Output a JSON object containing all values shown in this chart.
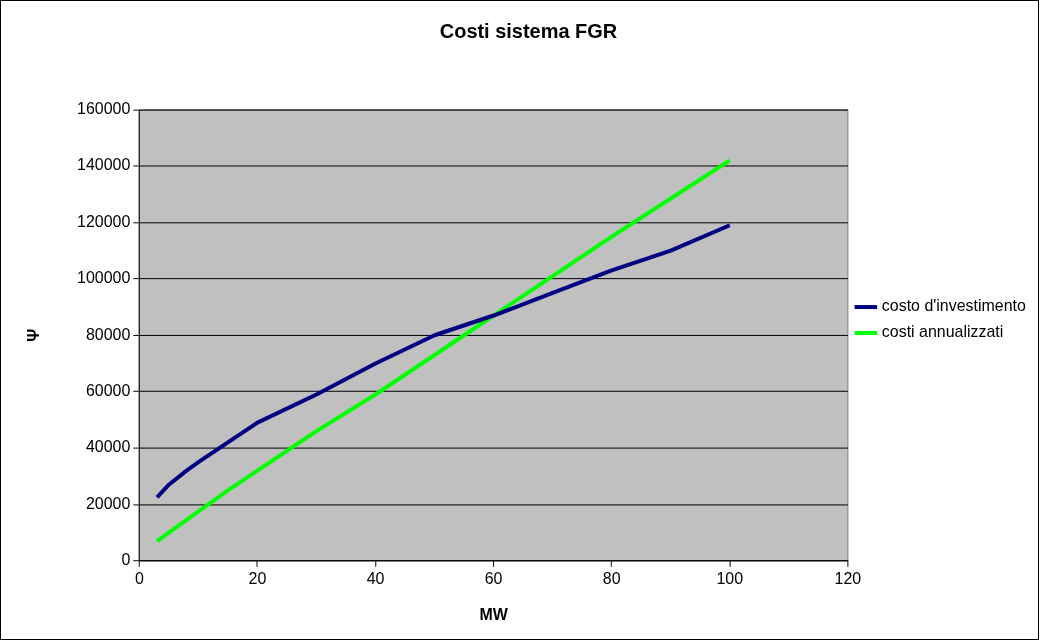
{
  "chart_data": {
    "type": "line",
    "title": "Costi sistema FGR",
    "xlabel": "MW",
    "ylabel": "Ψ",
    "x": [
      3,
      5,
      8,
      10,
      15,
      20,
      30,
      40,
      50,
      60,
      70,
      80,
      90,
      100
    ],
    "series": [
      {
        "name": "costo d'investimento",
        "color": "#000080",
        "values": [
          22500,
          27000,
          32000,
          35000,
          42000,
          49000,
          59000,
          70000,
          80000,
          87000,
          95000,
          103000,
          110000,
          119000
        ]
      },
      {
        "name": "costi annualizzati",
        "color": "#00ff00",
        "values": [
          7000,
          10000,
          14500,
          17500,
          25000,
          32000,
          46000,
          59000,
          73000,
          87000,
          101000,
          115000,
          128500,
          142000
        ]
      }
    ],
    "xlim": [
      0,
      120
    ],
    "xticks": [
      0,
      20,
      40,
      60,
      80,
      100,
      120
    ],
    "ylim": [
      0,
      160000
    ],
    "yticks": [
      0,
      20000,
      40000,
      60000,
      80000,
      100000,
      120000,
      140000,
      160000
    ],
    "grid": "y",
    "legend": "right",
    "marker": "none",
    "line_style": "solid"
  }
}
